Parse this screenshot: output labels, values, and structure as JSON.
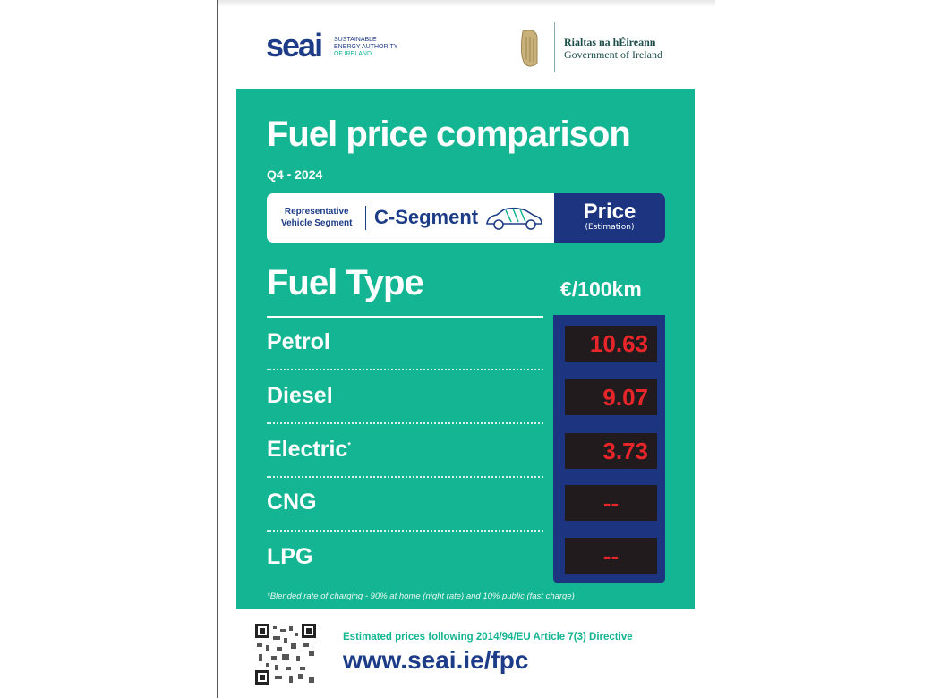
{
  "header": {
    "seai_logo": {
      "word": "seai",
      "lines": [
        "SUSTAINABLE",
        "ENERGY AUTHORITY",
        "OF IRELAND"
      ]
    },
    "gov_logo": {
      "irish": "Rialtas na hÉireann",
      "english": "Government of Ireland"
    }
  },
  "panel": {
    "title": "Fuel price comparison",
    "quarter": "Q4 - 2024",
    "segment_label_1": "Representative",
    "segment_label_2": "Vehicle Segment",
    "segment_name": "C-Segment",
    "price_header": "Price",
    "price_sub": "(Estimation)",
    "fuel_type_header": "Fuel Type",
    "unit": "€/100km",
    "rows": [
      {
        "fuel": "Petrol",
        "price": "10.63"
      },
      {
        "fuel": "Diesel",
        "price": "9.07"
      },
      {
        "fuel": "Electric",
        "marker": "*",
        "price": "3.73"
      },
      {
        "fuel": "CNG",
        "price": "--"
      },
      {
        "fuel": "LPG",
        "price": "--"
      }
    ],
    "footnote": "*Blended rate of charging - 90% at home (night rate) and 10% public (fast charge)"
  },
  "footer": {
    "directive": "Estimated prices following 2014/94/EU Article 7(3) Directive",
    "url": "www.seai.ie/fpc"
  },
  "colors": {
    "green": "#14b592",
    "navy": "#1d3580",
    "display_red": "#e8262a"
  }
}
